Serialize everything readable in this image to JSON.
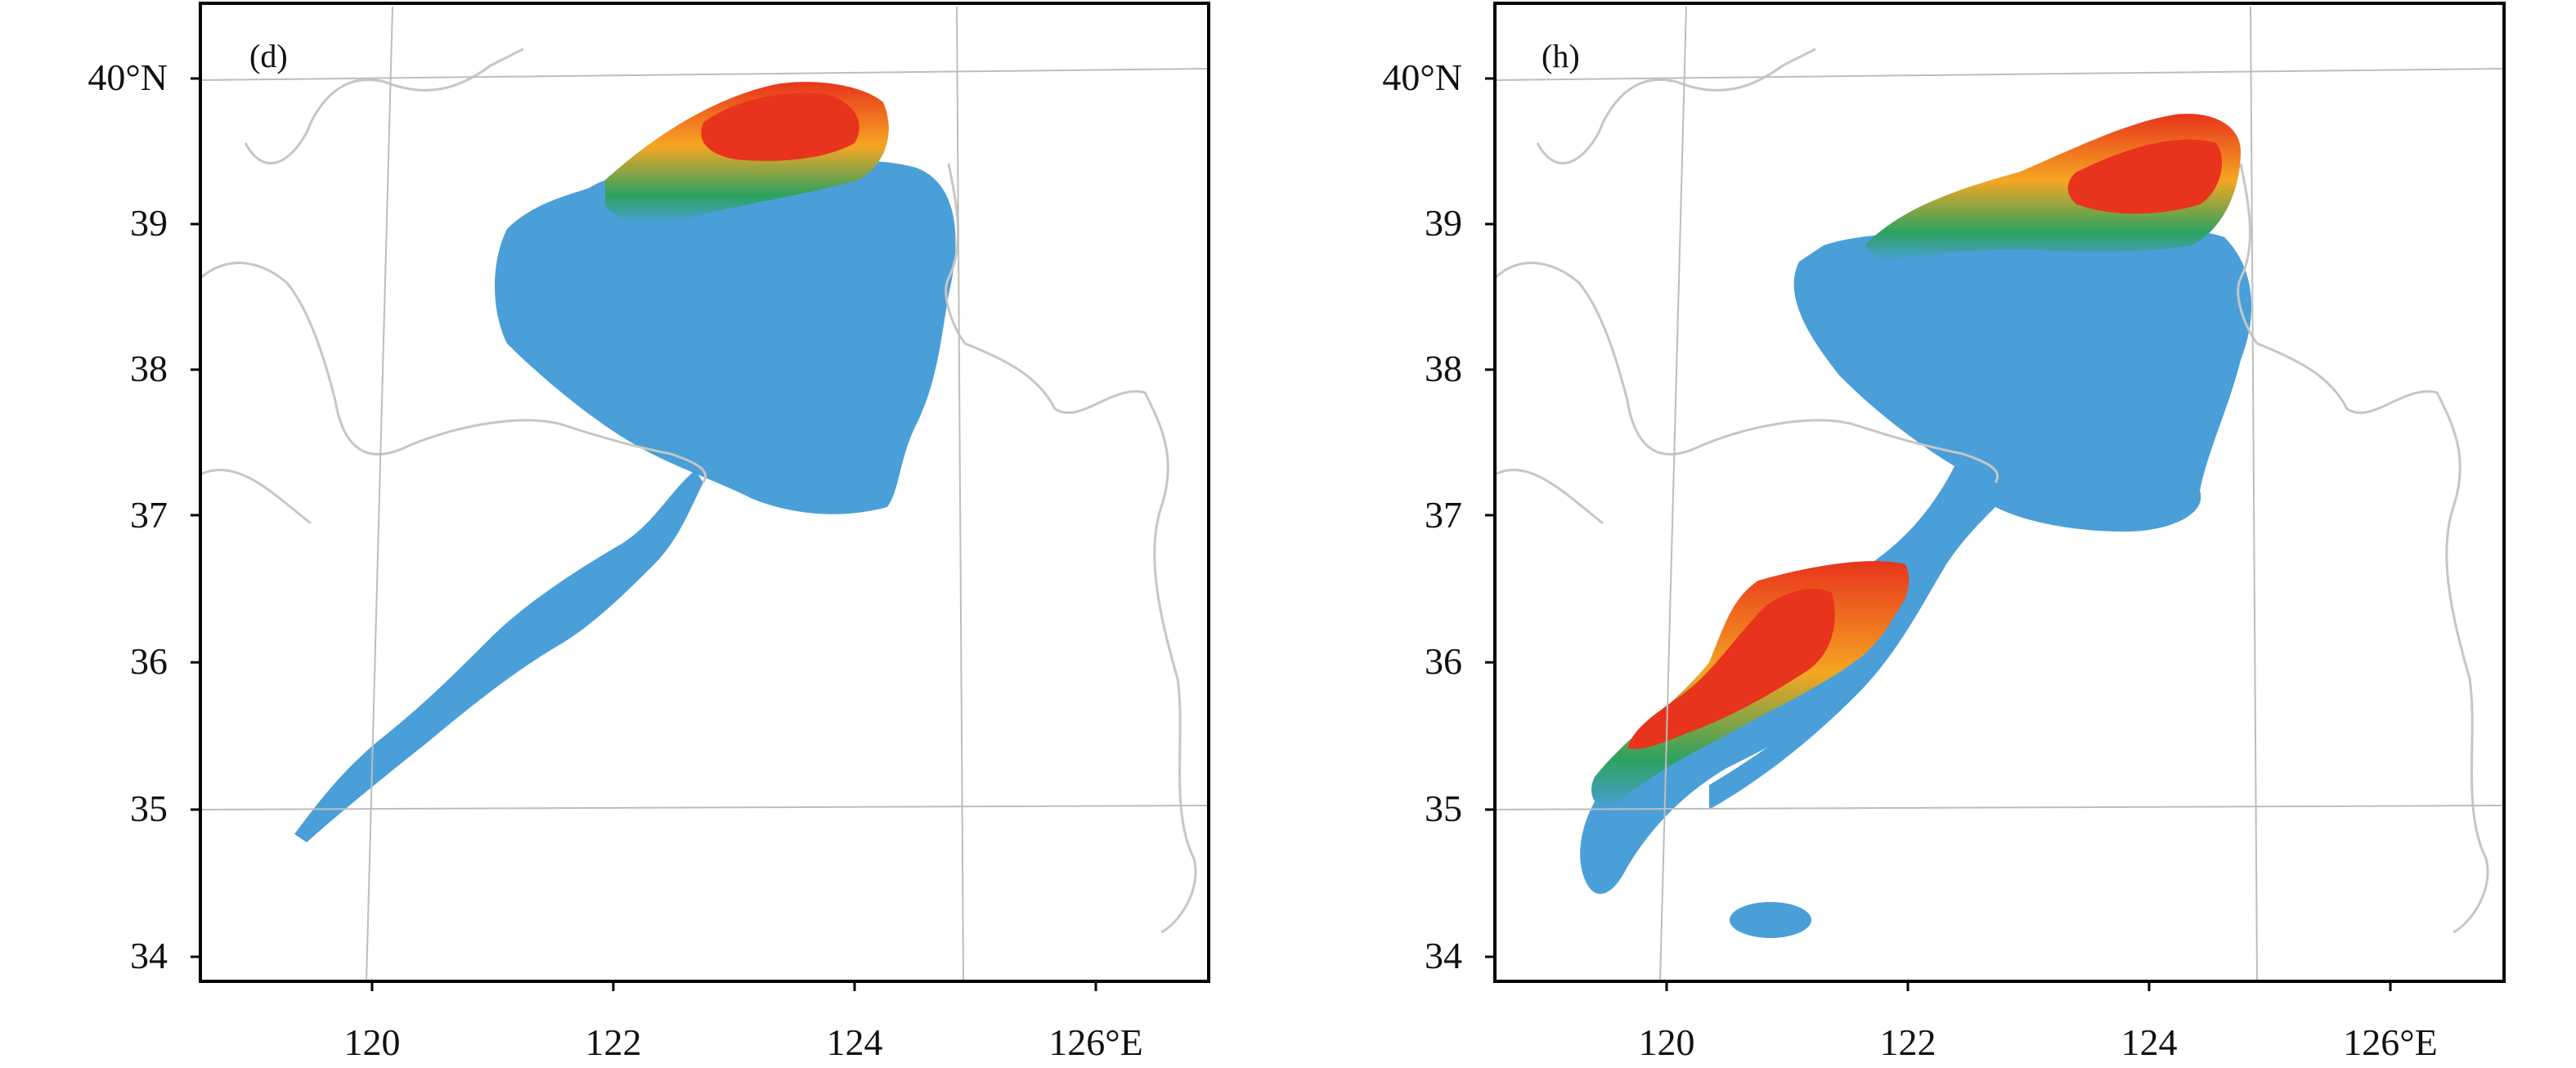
{
  "panels": [
    {
      "label": "(d)",
      "y_ticks": [
        "40°N",
        "39",
        "38",
        "37",
        "36",
        "35",
        "34"
      ],
      "x_ticks": [
        "120",
        "122",
        "124",
        "126°E"
      ]
    },
    {
      "label": "(h)",
      "y_ticks": [
        "40°N",
        "39",
        "38",
        "37",
        "36",
        "35",
        "34"
      ],
      "x_ticks": [
        "120",
        "122",
        "124",
        "126°E"
      ]
    }
  ],
  "colors": {
    "low": "#4a9fd8",
    "mid": "#2ca25f",
    "high": "#f5a623",
    "peak": "#e8341c",
    "land": "#c6c6c6",
    "grid": "#bdbdbd",
    "frame": "#000000"
  }
}
